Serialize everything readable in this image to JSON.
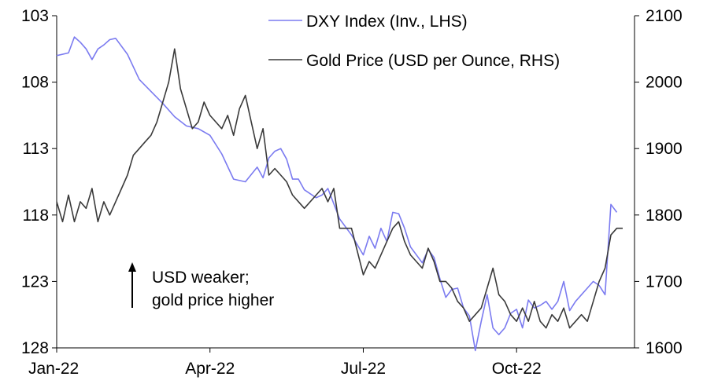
{
  "chart_data": {
    "type": "line",
    "title": "",
    "xlabel": "",
    "ylabel_left": "",
    "ylabel_right": "",
    "x_ticks": [
      "Jan-22",
      "Apr-22",
      "Jul-22",
      "Oct-22"
    ],
    "x_tick_weeks": [
      0,
      13,
      26,
      39
    ],
    "x_range_weeks": [
      0,
      49
    ],
    "y_left": {
      "ticks": [
        103,
        108,
        113,
        118,
        123,
        128
      ],
      "range": [
        103,
        128
      ],
      "inverted": true
    },
    "y_right": {
      "ticks": [
        2100,
        2000,
        1900,
        1800,
        1700,
        1600
      ],
      "range": [
        1600,
        2100
      ],
      "inverted": false
    },
    "legend": {
      "placement": "top-right",
      "entries": [
        "DXY Index (Inv., LHS)",
        "Gold Price (USD per Ounce, RHS)"
      ]
    },
    "annotation": {
      "line1": "USD weaker;",
      "line2": "gold price higher",
      "arrow": "up"
    },
    "colors": {
      "dxy": "#7b7bf0",
      "gold": "#3a3a3a"
    },
    "series": [
      {
        "name": "DXY Index (Inv., LHS)",
        "axis": "left",
        "x_unit": "weeks from Jan-22",
        "x": [
          0,
          1,
          1.5,
          2,
          2.5,
          3,
          3.5,
          4,
          4.5,
          5,
          6,
          7,
          8,
          9,
          10,
          11,
          12,
          13,
          14,
          15,
          16,
          17,
          17.5,
          18,
          18.5,
          19,
          19.5,
          20,
          20.5,
          21,
          22,
          22.5,
          23,
          24,
          25,
          26,
          26.5,
          27,
          27.5,
          28,
          28.5,
          29,
          29.5,
          30,
          31,
          31.5,
          32,
          32.5,
          33,
          33.5,
          34,
          34.5,
          35,
          35.5,
          36,
          36.5,
          37,
          37.5,
          38,
          38.5,
          39,
          39.5,
          40,
          40.5,
          41,
          41.5,
          42,
          42.5,
          43,
          43.5,
          44,
          44.5,
          45,
          45.5,
          46,
          46.5,
          47,
          47.5
        ],
        "y": [
          106.0,
          105.8,
          104.6,
          105.0,
          105.5,
          106.3,
          105.5,
          105.2,
          104.8,
          104.7,
          105.9,
          107.8,
          108.7,
          109.6,
          110.6,
          111.3,
          111.5,
          112.0,
          113.4,
          115.3,
          115.5,
          114.4,
          115.2,
          113.7,
          113.2,
          113.0,
          113.8,
          115.3,
          115.3,
          116.1,
          116.7,
          116.5,
          116.0,
          118.3,
          119.5,
          121.0,
          119.6,
          120.5,
          119.0,
          120.0,
          117.8,
          117.9,
          119.0,
          120.4,
          121.6,
          120.6,
          121.2,
          122.8,
          124.2,
          123.6,
          123.5,
          125.0,
          125.6,
          128.2,
          126.0,
          124.0,
          126.5,
          127.0,
          126.5,
          125.4,
          125.1,
          126.5,
          124.4,
          125.0,
          124.8,
          124.5,
          125.1,
          124.5,
          123.0,
          125.2,
          124.5,
          124.0,
          123.5,
          123.0,
          123.3,
          124.0,
          117.2,
          117.8
        ]
      },
      {
        "name": "Gold Price (USD per Ounce, RHS)",
        "axis": "right",
        "x_unit": "weeks from Jan-22",
        "x": [
          0,
          0.5,
          1,
          1.5,
          2,
          2.5,
          3,
          3.5,
          4,
          4.5,
          5,
          5.5,
          6,
          6.5,
          7,
          7.5,
          8,
          8.5,
          9,
          9.5,
          10,
          10.5,
          11,
          11.5,
          12,
          12.5,
          13,
          13.5,
          14,
          14.5,
          15,
          15.5,
          16,
          16.5,
          17,
          17.5,
          18,
          18.5,
          19,
          19.5,
          20,
          21,
          22,
          22.5,
          23,
          23.5,
          24,
          25,
          26,
          26.5,
          27,
          27.5,
          28,
          28.5,
          29,
          29.5,
          30,
          31,
          31.5,
          32,
          32.5,
          33,
          33.5,
          34,
          34.5,
          35,
          35.5,
          36,
          36.5,
          37,
          37.5,
          38,
          38.5,
          39,
          39.5,
          40,
          40.5,
          41,
          41.5,
          42,
          42.5,
          43,
          43.5,
          44,
          44.5,
          45,
          45.5,
          46,
          46.5,
          47,
          47.5,
          48
        ],
        "y": [
          1820,
          1790,
          1830,
          1790,
          1820,
          1810,
          1840,
          1790,
          1820,
          1800,
          1820,
          1840,
          1860,
          1890,
          1900,
          1910,
          1920,
          1940,
          1970,
          2000,
          2050,
          1990,
          1960,
          1930,
          1940,
          1970,
          1950,
          1940,
          1930,
          1950,
          1920,
          1960,
          1980,
          1940,
          1900,
          1930,
          1860,
          1870,
          1860,
          1850,
          1830,
          1810,
          1830,
          1840,
          1820,
          1840,
          1780,
          1780,
          1710,
          1730,
          1720,
          1740,
          1760,
          1780,
          1790,
          1760,
          1740,
          1720,
          1750,
          1730,
          1700,
          1700,
          1690,
          1670,
          1660,
          1640,
          1650,
          1660,
          1690,
          1720,
          1680,
          1670,
          1650,
          1640,
          1660,
          1640,
          1670,
          1640,
          1630,
          1650,
          1640,
          1660,
          1630,
          1640,
          1650,
          1640,
          1670,
          1700,
          1720,
          1770,
          1780,
          1780
        ]
      }
    ]
  }
}
